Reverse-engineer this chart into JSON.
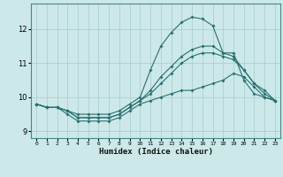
{
  "xlabel": "Humidex (Indice chaleur)",
  "ylabel": "",
  "background_color": "#cce8e8",
  "grid_color": "#afd0d0",
  "line_color": "#2a7070",
  "xlim": [
    -0.5,
    23.5
  ],
  "ylim": [
    8.8,
    12.75
  ],
  "xticks": [
    0,
    1,
    2,
    3,
    4,
    5,
    6,
    7,
    8,
    9,
    10,
    11,
    12,
    13,
    14,
    15,
    16,
    17,
    18,
    19,
    20,
    21,
    22,
    23
  ],
  "yticks": [
    9,
    10,
    11,
    12
  ],
  "line1_x": [
    0,
    1,
    2,
    3,
    4,
    5,
    6,
    7,
    8,
    9,
    10,
    11,
    12,
    13,
    14,
    15,
    16,
    17,
    18,
    19,
    20,
    21,
    22,
    23
  ],
  "line1_y": [
    9.8,
    9.7,
    9.7,
    9.6,
    9.5,
    9.5,
    9.5,
    9.5,
    9.6,
    9.8,
    10.0,
    10.8,
    11.5,
    11.9,
    12.2,
    12.35,
    12.3,
    12.1,
    11.3,
    11.3,
    10.5,
    10.1,
    10.0,
    9.9
  ],
  "line2_x": [
    0,
    1,
    2,
    3,
    4,
    5,
    6,
    7,
    8,
    9,
    10,
    11,
    12,
    13,
    14,
    15,
    16,
    17,
    18,
    19,
    20,
    21,
    22,
    23
  ],
  "line2_y": [
    9.8,
    9.7,
    9.7,
    9.6,
    9.4,
    9.4,
    9.4,
    9.4,
    9.5,
    9.7,
    9.9,
    10.2,
    10.6,
    10.9,
    11.2,
    11.4,
    11.5,
    11.5,
    11.3,
    11.2,
    10.8,
    10.4,
    10.2,
    9.9
  ],
  "line3_x": [
    0,
    1,
    2,
    3,
    4,
    5,
    6,
    7,
    8,
    9,
    10,
    11,
    12,
    13,
    14,
    15,
    16,
    17,
    18,
    19,
    20,
    21,
    22,
    23
  ],
  "line3_y": [
    9.8,
    9.7,
    9.7,
    9.6,
    9.4,
    9.4,
    9.4,
    9.4,
    9.5,
    9.7,
    9.9,
    10.1,
    10.4,
    10.7,
    11.0,
    11.2,
    11.3,
    11.3,
    11.2,
    11.1,
    10.8,
    10.4,
    10.1,
    9.9
  ],
  "line4_x": [
    0,
    1,
    2,
    3,
    4,
    5,
    6,
    7,
    8,
    9,
    10,
    11,
    12,
    13,
    14,
    15,
    16,
    17,
    18,
    19,
    20,
    21,
    22,
    23
  ],
  "line4_y": [
    9.8,
    9.7,
    9.7,
    9.5,
    9.3,
    9.3,
    9.3,
    9.3,
    9.4,
    9.6,
    9.8,
    9.9,
    10.0,
    10.1,
    10.2,
    10.2,
    10.3,
    10.4,
    10.5,
    10.7,
    10.6,
    10.3,
    10.0,
    9.9
  ]
}
